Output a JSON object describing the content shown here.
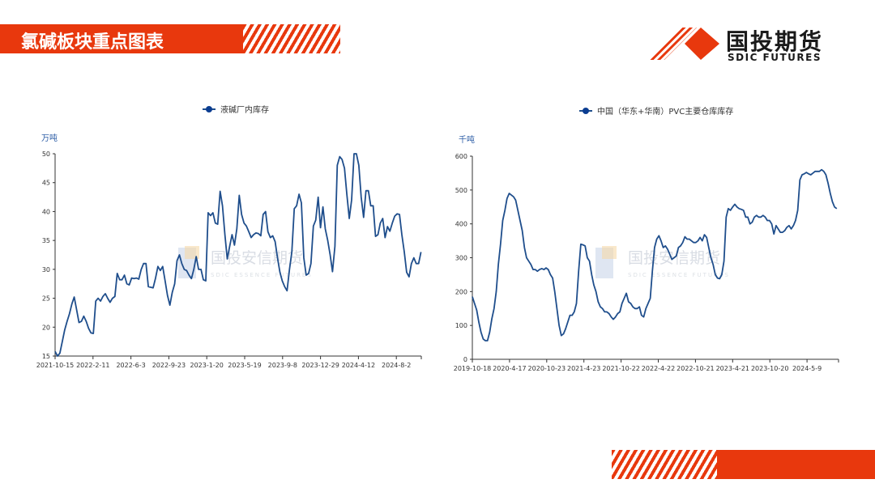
{
  "header": {
    "title": "氯碱板块重点图表"
  },
  "logo": {
    "cn": "国投期货",
    "en": "SDIC FUTURES"
  },
  "watermark": {
    "cn": "国投安信期货",
    "en": "SDIC ESSENCE FUTURES"
  },
  "colors": {
    "accent": "#e8380d",
    "line": "#1f4e8c"
  },
  "chart_data": [
    {
      "type": "line",
      "title": "",
      "legend": "液碱厂内库存",
      "ylabel": "万吨",
      "ylim": [
        15,
        50
      ],
      "yticks": [
        15,
        20,
        25,
        30,
        35,
        40,
        45,
        50
      ],
      "xticks": [
        "2021-10-15",
        "2022-2-11",
        "2022-6-3",
        "2022-9-23",
        "2023-1-20",
        "2023-5-19",
        "2023-9-8",
        "2023-12-29",
        "2024-4-12",
        "2024-8-2"
      ],
      "x_span_intervals": 9.65,
      "values": [
        15.8,
        15,
        15.5,
        17.5,
        19.5,
        21,
        22.3,
        24,
        25.2,
        23,
        20.8,
        21,
        21.9,
        21,
        19.8,
        19,
        18.9,
        24.5,
        25,
        24.5,
        25.3,
        25.8,
        25,
        24.3,
        25,
        25.3,
        29.3,
        28.2,
        28.2,
        29,
        27.5,
        27.3,
        28.5,
        28.4,
        28.5,
        28.3,
        30,
        31,
        31,
        27,
        26.9,
        26.8,
        28.5,
        30.5,
        29.8,
        30.5,
        28,
        25.5,
        23.8,
        26,
        27.5,
        31.5,
        32.5,
        31,
        30,
        29.8,
        29,
        28.4,
        30,
        32.2,
        30,
        30,
        28.2,
        28,
        39.8,
        39.3,
        39.8,
        38,
        37.8,
        43.5,
        41,
        36,
        31.8,
        34,
        36,
        34.2,
        37,
        42.8,
        39.5,
        38,
        37.5,
        36.5,
        35.5,
        36,
        36.3,
        36.2,
        35.8,
        39.5,
        40,
        36.5,
        35.5,
        35.8,
        34.8,
        32,
        29.5,
        28,
        27,
        26.3,
        30,
        33,
        40.5,
        41,
        43,
        41.5,
        32,
        29,
        29.3,
        31,
        37.5,
        38.5,
        42.5,
        37.2,
        40.8,
        37,
        35,
        32.5,
        29.6,
        34,
        48,
        49.5,
        49,
        47.5,
        43,
        38.8,
        42,
        50,
        50,
        48,
        42.5,
        39,
        43.6,
        43.6,
        41,
        41,
        35.7,
        36,
        38,
        38.8,
        35.5,
        37.4,
        36.6,
        38,
        39.2,
        39.6,
        39.5,
        36,
        33,
        29.5,
        28.7,
        31,
        32,
        31,
        31,
        33
      ]
    },
    {
      "type": "line",
      "title": "",
      "legend": "中国（华东+华南）PVC主要仓库库存",
      "ylabel": "千吨",
      "ylim": [
        0,
        600
      ],
      "yticks": [
        0,
        100,
        200,
        300,
        400,
        500,
        600
      ],
      "xticks": [
        "2019-10-18",
        "2020-4-17",
        "2020-10-23",
        "2021-4-23",
        "2021-10-22",
        "2022-4-22",
        "2022-10-21",
        "2023-4-21",
        "2023-10-20",
        "2024-5-9"
      ],
      "x_span_intervals": 9.8,
      "values": [
        185,
        165,
        145,
        110,
        80,
        60,
        55,
        55,
        80,
        120,
        150,
        200,
        280,
        340,
        410,
        440,
        475,
        490,
        485,
        480,
        470,
        440,
        410,
        380,
        330,
        300,
        290,
        280,
        265,
        265,
        260,
        265,
        268,
        265,
        270,
        265,
        250,
        240,
        200,
        150,
        100,
        70,
        75,
        90,
        110,
        130,
        130,
        140,
        165,
        260,
        340,
        338,
        335,
        300,
        290,
        250,
        220,
        200,
        170,
        155,
        150,
        140,
        140,
        135,
        125,
        118,
        125,
        135,
        140,
        165,
        180,
        195,
        170,
        165,
        155,
        150,
        150,
        155,
        130,
        125,
        150,
        165,
        180,
        260,
        330,
        355,
        365,
        350,
        330,
        335,
        325,
        310,
        295,
        300,
        305,
        330,
        335,
        345,
        362,
        355,
        355,
        350,
        345,
        345,
        350,
        360,
        350,
        368,
        360,
        330,
        300,
        280,
        250,
        240,
        238,
        250,
        290,
        420,
        445,
        440,
        450,
        458,
        450,
        445,
        443,
        440,
        420,
        420,
        400,
        405,
        420,
        425,
        420,
        420,
        425,
        420,
        410,
        410,
        400,
        370,
        395,
        385,
        375,
        375,
        380,
        390,
        395,
        385,
        395,
        410,
        440,
        530,
        545,
        548,
        552,
        548,
        545,
        550,
        555,
        555,
        555,
        560,
        555,
        545,
        520,
        490,
        465,
        450,
        445
      ]
    }
  ]
}
